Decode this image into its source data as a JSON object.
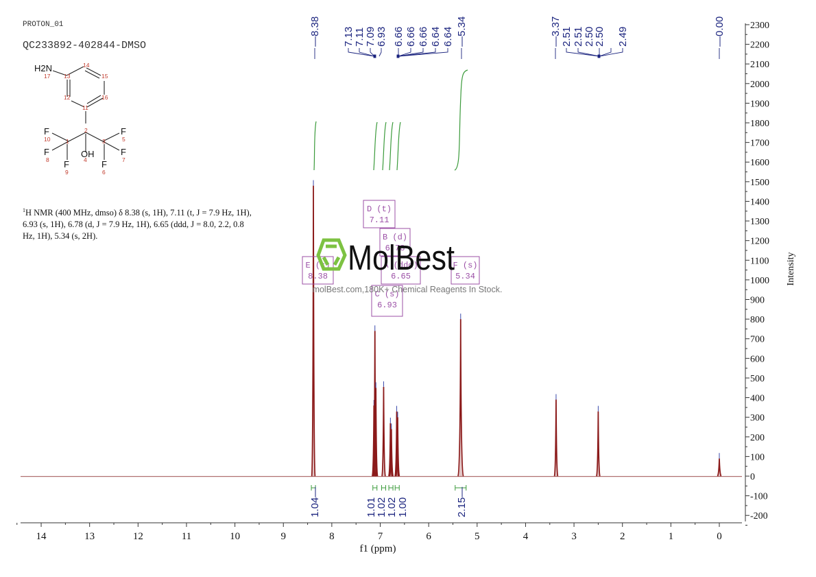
{
  "header": {
    "experiment": "PROTON_01",
    "sample": "QC233892-402844-DMSO"
  },
  "structure": {
    "atoms": [
      {
        "label": "H2N",
        "num": "17"
      },
      {
        "label": "C",
        "num": "13"
      },
      {
        "label": "C",
        "num": "14"
      },
      {
        "label": "C",
        "num": "15"
      },
      {
        "label": "C",
        "num": "16"
      },
      {
        "label": "C",
        "num": "11"
      },
      {
        "label": "C",
        "num": "12"
      },
      {
        "label": "C",
        "num": "2"
      },
      {
        "label": "C",
        "num": "1"
      },
      {
        "label": "C",
        "num": "3"
      },
      {
        "label": "OH",
        "num": "4"
      },
      {
        "label": "F",
        "num": "10"
      },
      {
        "label": "F",
        "num": "8"
      },
      {
        "label": "F",
        "num": "9"
      },
      {
        "label": "F",
        "num": "5"
      },
      {
        "label": "F",
        "num": "7"
      },
      {
        "label": "F",
        "num": "6"
      }
    ]
  },
  "nmr_description": {
    "sup": "1",
    "text": "H NMR (400 MHz, dmso) δ 8.38 (s, 1H), 7.11 (t, J = 7.9 Hz, 1H), 6.93 (s, 1H), 6.78 (d, J = 7.9 Hz, 1H), 6.65 (ddd, J = 8.0, 2.2, 0.8 Hz, 1H), 5.34 (s, 2H)."
  },
  "watermark": {
    "brand": "MolBest",
    "tagline": "molBest.com,180K+ Chemical Reagents In Stock.",
    "logo_color": "#7dc242"
  },
  "colors": {
    "spectrum": "#8b1a1a",
    "peak_labels": "#1a237e",
    "integral": "#3a9a3a",
    "multiplet_box": "#9b4fa6",
    "axis": "#333333"
  },
  "chart_data": {
    "type": "line",
    "title": "PROTON_01 QC233892-402844-DMSO",
    "xlabel": "f1 (ppm)",
    "ylabel": "Intensity",
    "xlim": [
      14.5,
      -0.45
    ],
    "ylim": [
      -230,
      2330
    ],
    "x_ticks": [
      14,
      13,
      12,
      11,
      10,
      9,
      8,
      7,
      6,
      5,
      4,
      3,
      2,
      1,
      0
    ],
    "y_ticks": [
      2300,
      2200,
      2100,
      2000,
      1900,
      1800,
      1700,
      1600,
      1500,
      1400,
      1300,
      1200,
      1100,
      1000,
      900,
      800,
      700,
      600,
      500,
      400,
      300,
      200,
      100,
      0,
      -100,
      -200
    ],
    "peak_labels_top": [
      "8.38",
      "7.13",
      "7.11",
      "7.09",
      "6.93",
      "6.66",
      "6.66",
      "6.66",
      "6.64",
      "6.64",
      "5.34",
      "3.37",
      "2.51",
      "2.51",
      "2.50",
      "2.50",
      "2.49",
      "0.00"
    ],
    "peaks": [
      {
        "ppm": 8.38,
        "intensity": 1480
      },
      {
        "ppm": 7.13,
        "intensity": 360
      },
      {
        "ppm": 7.11,
        "intensity": 740
      },
      {
        "ppm": 7.09,
        "intensity": 450
      },
      {
        "ppm": 6.93,
        "intensity": 455
      },
      {
        "ppm": 6.79,
        "intensity": 270
      },
      {
        "ppm": 6.77,
        "intensity": 240
      },
      {
        "ppm": 6.66,
        "intensity": 330
      },
      {
        "ppm": 6.64,
        "intensity": 300
      },
      {
        "ppm": 5.34,
        "intensity": 800
      },
      {
        "ppm": 3.37,
        "intensity": 390
      },
      {
        "ppm": 2.5,
        "intensity": 330
      },
      {
        "ppm": 0.0,
        "intensity": 90
      }
    ],
    "integrals": [
      {
        "ppm": 8.38,
        "value": "1.04"
      },
      {
        "ppm": 7.11,
        "value": "1.01"
      },
      {
        "ppm": 6.93,
        "value": "1.02"
      },
      {
        "ppm": 6.78,
        "value": "1.02"
      },
      {
        "ppm": 6.65,
        "value": "1.00"
      },
      {
        "ppm": 5.34,
        "value": "2.15"
      }
    ],
    "multiplets": [
      {
        "id": "D",
        "mult": "(t)",
        "shift": "7.11"
      },
      {
        "id": "B",
        "mult": "(d)",
        "shift": "6.78"
      },
      {
        "id": "E",
        "mult": "(s)",
        "shift": "8.38"
      },
      {
        "id": "A",
        "mult": "(ddd)",
        "shift": "6.65"
      },
      {
        "id": "F",
        "mult": "(s)",
        "shift": "5.34"
      },
      {
        "id": "C",
        "mult": "(s)",
        "shift": "6.93"
      }
    ],
    "grid": false,
    "legend": "none"
  }
}
